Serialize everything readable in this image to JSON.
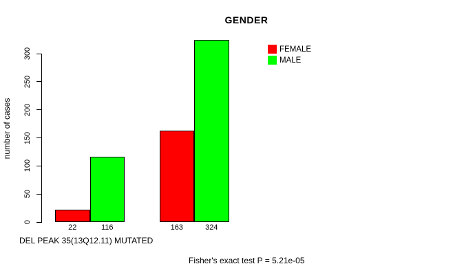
{
  "texts": {
    "caption": "DEL PEAK 35(13Q12.11) MUTATED",
    "footer": "Fisher's exact test P = 5.21e-05"
  },
  "chart_data": {
    "type": "bar",
    "title": "GENDER",
    "ylabel": "number of cases",
    "ylim": [
      0,
      300
    ],
    "yticks": [
      0,
      50,
      100,
      150,
      200,
      250,
      300
    ],
    "grid": false,
    "legend_position": "top-right",
    "series": [
      {
        "name": "FEMALE",
        "color": "#FF0000",
        "values": [
          22,
          163
        ]
      },
      {
        "name": "MALE",
        "color": "#00FF00",
        "values": [
          116,
          324
        ]
      }
    ],
    "bar_labels": [
      "22",
      "116",
      "163",
      "324"
    ],
    "caption": "DEL PEAK 35(13Q12.11) MUTATED",
    "annotation": "Fisher's exact test P = 5.21e-05"
  }
}
